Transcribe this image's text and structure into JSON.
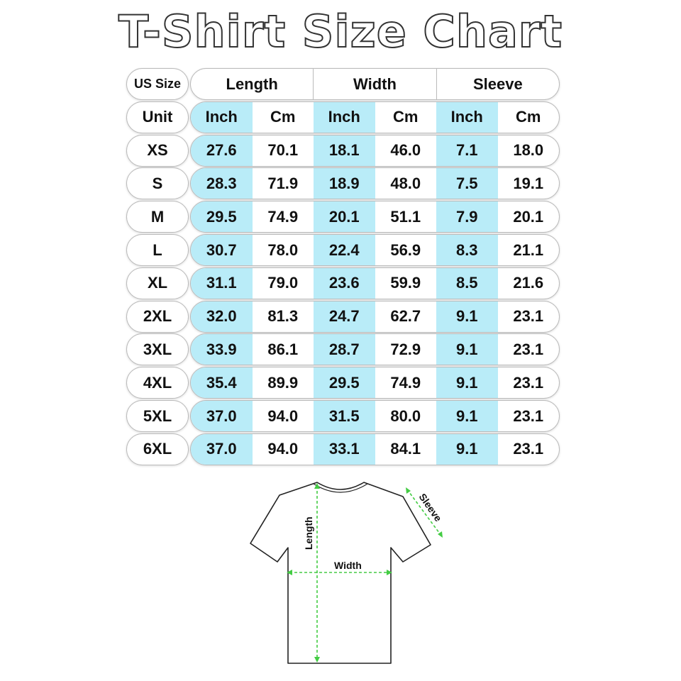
{
  "title": "T-Shirt Size Chart",
  "accent_color": "#b9ecf8",
  "measure_color": "#44cc44",
  "header": {
    "size_label": "US Size",
    "groups": [
      "Length",
      "Width",
      "Sleeve"
    ],
    "unit_label": "Unit",
    "units": [
      "Inch",
      "Cm",
      "Inch",
      "Cm",
      "Inch",
      "Cm"
    ]
  },
  "rows": [
    {
      "size": "XS",
      "values": [
        "27.6",
        "70.1",
        "18.1",
        "46.0",
        "7.1",
        "18.0"
      ]
    },
    {
      "size": "S",
      "values": [
        "28.3",
        "71.9",
        "18.9",
        "48.0",
        "7.5",
        "19.1"
      ]
    },
    {
      "size": "M",
      "values": [
        "29.5",
        "74.9",
        "20.1",
        "51.1",
        "7.9",
        "20.1"
      ]
    },
    {
      "size": "L",
      "values": [
        "30.7",
        "78.0",
        "22.4",
        "56.9",
        "8.3",
        "21.1"
      ]
    },
    {
      "size": "XL",
      "values": [
        "31.1",
        "79.0",
        "23.6",
        "59.9",
        "8.5",
        "21.6"
      ]
    },
    {
      "size": "2XL",
      "values": [
        "32.0",
        "81.3",
        "24.7",
        "62.7",
        "9.1",
        "23.1"
      ]
    },
    {
      "size": "3XL",
      "values": [
        "33.9",
        "86.1",
        "28.7",
        "72.9",
        "9.1",
        "23.1"
      ]
    },
    {
      "size": "4XL",
      "values": [
        "35.4",
        "89.9",
        "29.5",
        "74.9",
        "9.1",
        "23.1"
      ]
    },
    {
      "size": "5XL",
      "values": [
        "37.0",
        "94.0",
        "31.5",
        "80.0",
        "9.1",
        "23.1"
      ]
    },
    {
      "size": "6XL",
      "values": [
        "37.0",
        "94.0",
        "33.1",
        "84.1",
        "9.1",
        "23.1"
      ]
    }
  ],
  "diagram": {
    "length_label": "Length",
    "width_label": "Width",
    "sleeve_label": "Sleeve"
  }
}
